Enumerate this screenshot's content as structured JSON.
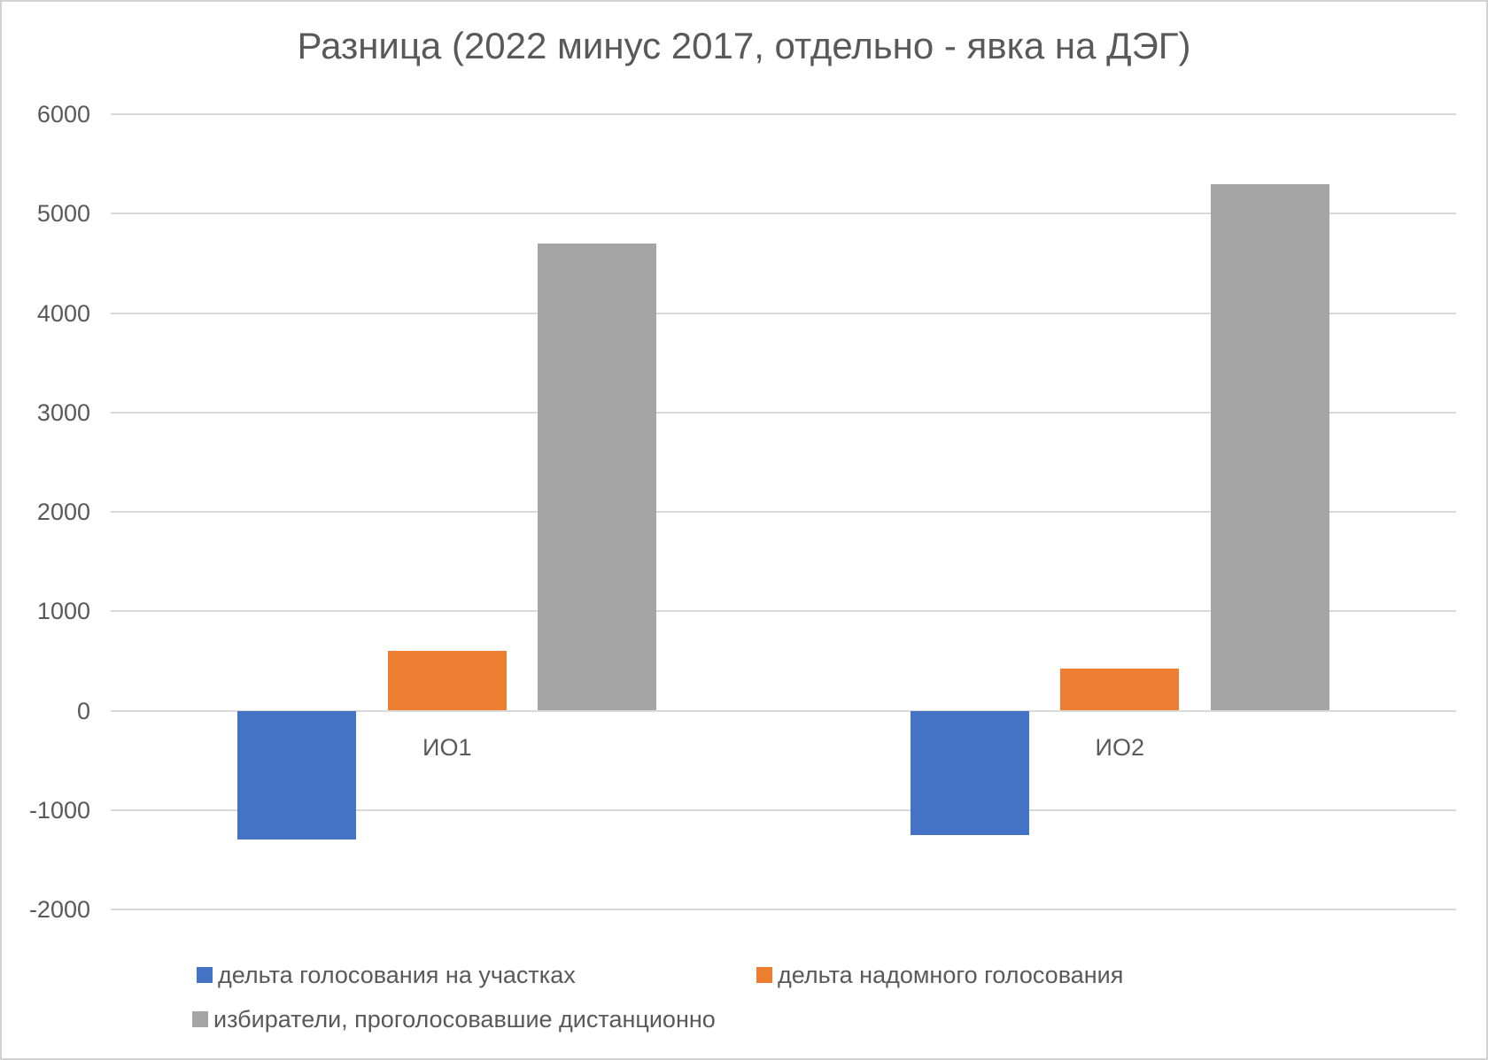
{
  "chart_data": {
    "type": "bar",
    "title": "Разница (2022 минус 2017, отдельно - явка на ДЭГ)",
    "categories": [
      "ИО1",
      "ИО2"
    ],
    "series": [
      {
        "name": "дельта голосования на участках",
        "color": "#4472C4",
        "values": [
          -1300,
          -1250
        ]
      },
      {
        "name": "дельта надомного голосования",
        "color": "#ED7D31",
        "values": [
          600,
          420
        ]
      },
      {
        "name": "избиратели, проголосовавшие дистанционно",
        "color": "#A5A5A5",
        "values": [
          4700,
          5300
        ]
      }
    ],
    "y_axis": {
      "min": -2000,
      "max": 6000,
      "step": 1000,
      "tick_labels": [
        "6000",
        "5000",
        "4000",
        "3000",
        "2000",
        "1000",
        "0",
        "-1000",
        "-2000"
      ]
    },
    "xlabel": "",
    "ylabel": "",
    "grid": true,
    "legend_position": "bottom"
  },
  "colors": {
    "text": "#595959",
    "gridline": "#D9D9D9",
    "background": "#FFFFFF",
    "border": "#D2D2D2"
  }
}
